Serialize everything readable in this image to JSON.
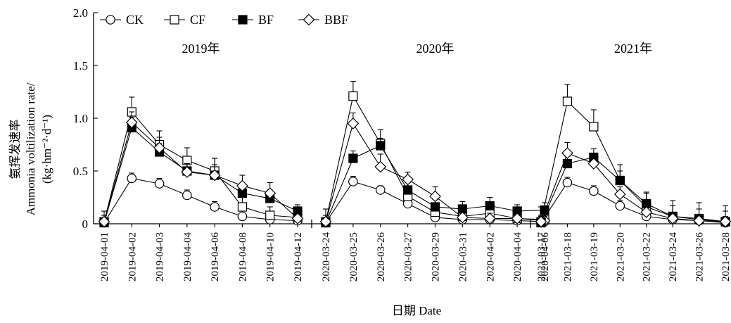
{
  "chart_data": {
    "type": "line",
    "ylabel_lines": [
      "氨挥发速率",
      "Ammonia voltilization rate/",
      "(kg·hm⁻²·d⁻¹)"
    ],
    "xlabel": "日期 Date",
    "ylim": [
      0,
      2.0
    ],
    "yticks": [
      {
        "v": 0,
        "label": "0"
      },
      {
        "v": 0.5,
        "label": "0.5"
      },
      {
        "v": 1.0,
        "label": "1.0"
      },
      {
        "v": 1.5,
        "label": "1.5"
      },
      {
        "v": 2.0,
        "label": "2.0"
      }
    ],
    "legend": {
      "placement": "top-left",
      "entries": [
        {
          "name": "CK",
          "marker": "circle"
        },
        {
          "name": "CF",
          "marker": "square-open"
        },
        {
          "name": "BF",
          "marker": "square-filled"
        },
        {
          "name": "BBF",
          "marker": "diamond"
        }
      ]
    },
    "panels": [
      {
        "title": "2019年",
        "x": [
          "2019-04-01",
          "2019-04-02",
          "2019-04-03",
          "2019-04-04",
          "2019-04-06",
          "2019-04-08",
          "2019-04-10",
          "2019-04-12"
        ],
        "series": [
          {
            "name": "CK",
            "values": [
              0.01,
              0.43,
              0.38,
              0.27,
              0.16,
              0.07,
              0.04,
              0.03
            ],
            "errors": [
              0.05,
              0.05,
              0.05,
              0.05,
              0.05,
              0.05,
              0.03,
              0.03
            ]
          },
          {
            "name": "CF",
            "values": [
              0.02,
              1.06,
              0.75,
              0.6,
              0.5,
              0.16,
              0.08,
              0.06
            ],
            "errors": [
              0.1,
              0.14,
              0.13,
              0.12,
              0.12,
              0.1,
              0.08,
              0.07
            ]
          },
          {
            "name": "BF",
            "values": [
              0.01,
              0.91,
              0.68,
              0.5,
              0.46,
              0.29,
              0.24,
              0.12
            ],
            "errors": [
              0.05,
              0.1,
              0.08,
              0.07,
              0.1,
              0.08,
              0.08,
              0.06
            ]
          },
          {
            "name": "BBF",
            "values": [
              0.02,
              0.96,
              0.72,
              0.49,
              0.46,
              0.36,
              0.29,
              0.05
            ],
            "errors": [
              0.06,
              0.1,
              0.1,
              0.08,
              0.16,
              0.1,
              0.1,
              0.06
            ]
          }
        ]
      },
      {
        "title": "2020年",
        "x": [
          "2020-03-24",
          "2020-03-25",
          "2020-03-26",
          "2020-03-27",
          "2020-03-29",
          "2020-03-31",
          "2020-04-02",
          "2020-04-04",
          "2020-04-06"
        ],
        "series": [
          {
            "name": "CK",
            "values": [
              0.01,
              0.4,
              0.32,
              0.19,
              0.06,
              0.04,
              0.04,
              0.03,
              0.02
            ],
            "errors": [
              0.05,
              0.05,
              0.04,
              0.05,
              0.04,
              0.03,
              0.03,
              0.02,
              0.02
            ]
          },
          {
            "name": "CF",
            "values": [
              0.02,
              1.21,
              0.76,
              0.26,
              0.11,
              0.07,
              0.1,
              0.05,
              0.04
            ],
            "errors": [
              0.12,
              0.14,
              0.13,
              0.1,
              0.08,
              0.06,
              0.06,
              0.05,
              0.05
            ]
          },
          {
            "name": "BF",
            "values": [
              0.01,
              0.62,
              0.74,
              0.32,
              0.16,
              0.14,
              0.17,
              0.12,
              0.13
            ],
            "errors": [
              0.05,
              0.07,
              0.07,
              0.07,
              0.07,
              0.07,
              0.08,
              0.06,
              0.07
            ]
          },
          {
            "name": "BBF",
            "values": [
              0.02,
              0.95,
              0.54,
              0.42,
              0.26,
              0.06,
              0.05,
              0.05,
              0.03
            ],
            "errors": [
              0.06,
              0.1,
              0.12,
              0.07,
              0.09,
              0.05,
              0.05,
              0.04,
              0.04
            ]
          }
        ]
      },
      {
        "title": "2021年",
        "x": [
          "2021-03-17",
          "2021-03-18",
          "2021-03-19",
          "2021-03-20",
          "2021-03-22",
          "2021-03-24",
          "2021-03-26",
          "2021-03-28"
        ],
        "series": [
          {
            "name": "CK",
            "values": [
              0.01,
              0.39,
              0.31,
              0.17,
              0.07,
              0.04,
              0.03,
              0.01
            ],
            "errors": [
              0.06,
              0.05,
              0.05,
              0.05,
              0.05,
              0.05,
              0.05,
              0.05
            ]
          },
          {
            "name": "CF",
            "values": [
              0.02,
              1.16,
              0.92,
              0.41,
              0.16,
              0.07,
              0.05,
              0.02
            ],
            "errors": [
              0.14,
              0.16,
              0.16,
              0.15,
              0.14,
              0.15,
              0.15,
              0.15
            ]
          },
          {
            "name": "BF",
            "values": [
              0.01,
              0.57,
              0.63,
              0.41,
              0.19,
              0.07,
              0.04,
              0.02
            ],
            "errors": [
              0.07,
              0.07,
              0.08,
              0.09,
              0.1,
              0.1,
              0.1,
              0.1
            ]
          },
          {
            "name": "BBF",
            "values": [
              0.02,
              0.67,
              0.57,
              0.28,
              0.11,
              0.05,
              0.03,
              0.02
            ],
            "errors": [
              0.06,
              0.1,
              0.09,
              0.07,
              0.07,
              0.06,
              0.05,
              0.05
            ]
          }
        ]
      }
    ],
    "colors": {
      "marker_fill_open": "#ffffff",
      "ink": "#000000"
    }
  }
}
